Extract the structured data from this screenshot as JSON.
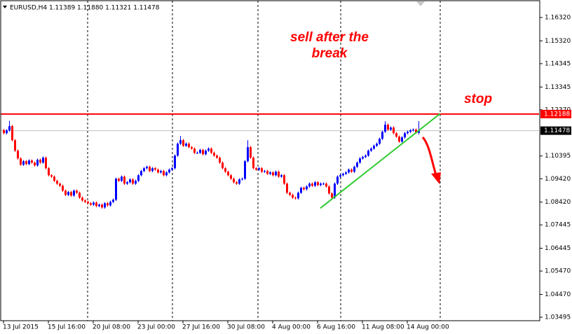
{
  "chart_data": {
    "type": "candlestick",
    "title": "EURUSD,H4  1.11389 1.11880 1.11321 1.11478",
    "up_color": "#0000ff",
    "down_color": "#ff0000",
    "xlim": [
      -1,
      191
    ],
    "ylim": [
      1.03345,
      1.16979
    ],
    "yticks": [
      {
        "value": 1.1632,
        "label": "1.16320"
      },
      {
        "value": 1.1532,
        "label": "1.15320"
      },
      1.14345,
      1.13345,
      {
        "value": 1.1237,
        "label": "1.12370"
      },
      1.10395,
      {
        "value": 1.0942,
        "label": "1.09420"
      },
      {
        "value": 1.0842,
        "label": "1.08420"
      },
      1.07445,
      1.06445,
      {
        "value": 1.0547,
        "label": "1.05470"
      },
      {
        "value": 1.0447,
        "label": "1.04470"
      },
      1.03495
    ],
    "xticks": [
      {
        "value": 0,
        "label": "13 Jul 2015"
      },
      {
        "value": 16,
        "label": "15 Jul 16:00"
      },
      {
        "value": 32,
        "label": "20 Jul 08:00"
      },
      {
        "value": 48,
        "label": "23 Jul 00:00"
      },
      {
        "value": 64,
        "label": "27 Jul 16:00"
      },
      {
        "value": 80,
        "label": "30 Jul 08:00"
      },
      {
        "value": 96,
        "label": "4 Aug 00:00"
      },
      {
        "value": 112,
        "label": "6 Aug 16:00"
      },
      {
        "value": 128,
        "label": "11 Aug 08:00"
      },
      {
        "value": 144,
        "label": "14 Aug 00:00"
      }
    ],
    "separators": [
      30,
      60.25,
      90.75,
      120.25,
      155.75
    ],
    "hlines": [
      {
        "value": 1.12188,
        "color": "#ff0000"
      },
      {
        "value": 1.11478,
        "color": "#c0c0c0"
      }
    ],
    "trendline": {
      "color": "#33cc33",
      "x": [
        113,
        155.75
      ],
      "y": [
        1.0816,
        1.1221
      ]
    },
    "annotations": [
      "sell after the",
      "break",
      "stop"
    ],
    "candles": [
      [
        1.115,
        1.1155,
        1.1132,
        1.1137
      ],
      [
        1.1137,
        1.1154,
        1.1132,
        1.1149
      ],
      [
        1.1149,
        1.119,
        1.1144,
        1.1167
      ],
      [
        1.1167,
        1.1172,
        1.1102,
        1.1107
      ],
      [
        1.1107,
        1.1112,
        1.1057,
        1.1062
      ],
      [
        1.1062,
        1.1067,
        1.1024,
        1.1029
      ],
      [
        1.1029,
        1.1034,
        1.0997,
        1.1002
      ],
      [
        1.1002,
        1.1022,
        1.0997,
        1.1017
      ],
      [
        1.1017,
        1.1022,
        1.1,
        1.1005
      ],
      [
        1.1005,
        1.1025,
        1.1,
        1.102
      ],
      [
        1.102,
        1.1025,
        1.1006,
        1.1011
      ],
      [
        1.1011,
        1.1016,
        1.0994,
        1.0999
      ],
      [
        1.0999,
        1.1028,
        1.0994,
        1.1023
      ],
      [
        1.1023,
        1.1028,
        1.1006,
        1.1011
      ],
      [
        1.1011,
        1.1037,
        1.1006,
        1.1032
      ],
      [
        1.1032,
        1.1037,
        1.0982,
        1.0987
      ],
      [
        1.0987,
        1.0992,
        1.0952,
        1.0957
      ],
      [
        1.0957,
        1.0962,
        1.0946,
        1.0951
      ],
      [
        1.0951,
        1.0956,
        1.0928,
        1.0933
      ],
      [
        1.0933,
        1.0938,
        1.0916,
        1.0921
      ],
      [
        1.0921,
        1.0926,
        1.0907,
        1.0912
      ],
      [
        1.0912,
        1.0917,
        1.0886,
        1.0891
      ],
      [
        1.0891,
        1.0896,
        1.0868,
        1.0873
      ],
      [
        1.0873,
        1.089,
        1.0868,
        1.0885
      ],
      [
        1.0885,
        1.089,
        1.0865,
        1.087
      ],
      [
        1.087,
        1.0896,
        1.0865,
        1.0891
      ],
      [
        1.0891,
        1.0896,
        1.0877,
        1.0882
      ],
      [
        1.0882,
        1.0887,
        1.0856,
        1.0861
      ],
      [
        1.0861,
        1.0866,
        1.0844,
        1.0849
      ],
      [
        1.0849,
        1.0854,
        1.0838,
        1.0843
      ],
      [
        1.0843,
        1.0848,
        1.0832,
        1.0837
      ],
      [
        1.0837,
        1.0842,
        1.0826,
        1.0831
      ],
      [
        1.0831,
        1.0845,
        1.0826,
        1.084
      ],
      [
        1.084,
        1.0845,
        1.082,
        1.0825
      ],
      [
        1.0825,
        1.0836,
        1.082,
        1.0831
      ],
      [
        1.0831,
        1.0836,
        1.0814,
        1.0819
      ],
      [
        1.0819,
        1.0842,
        1.0814,
        1.0837
      ],
      [
        1.0837,
        1.0842,
        1.0823,
        1.0828
      ],
      [
        1.0828,
        1.0848,
        1.0823,
        1.0843
      ],
      [
        1.0843,
        1.0857,
        1.0838,
        1.0852
      ],
      [
        1.0852,
        1.0947,
        1.0847,
        1.0942
      ],
      [
        1.0942,
        1.0947,
        1.0928,
        1.0933
      ],
      [
        1.0933,
        1.0956,
        1.0928,
        1.0951
      ],
      [
        1.0951,
        1.0956,
        1.0916,
        1.0921
      ],
      [
        1.0921,
        1.0932,
        1.0916,
        1.0927
      ],
      [
        1.0927,
        1.0944,
        1.0922,
        1.0939
      ],
      [
        1.0939,
        1.0944,
        1.0916,
        1.0921
      ],
      [
        1.0921,
        1.0938,
        1.0916,
        1.0933
      ],
      [
        1.0933,
        1.0962,
        1.0928,
        1.0957
      ],
      [
        1.0957,
        1.098,
        1.0952,
        1.0975
      ],
      [
        1.0975,
        1.0992,
        1.097,
        1.0987
      ],
      [
        1.0987,
        1.0998,
        1.0982,
        1.0993
      ],
      [
        1.0993,
        1.0998,
        1.097,
        1.0975
      ],
      [
        1.0975,
        1.0992,
        1.097,
        1.0987
      ],
      [
        1.0987,
        1.0992,
        1.0976,
        1.0981
      ],
      [
        1.0981,
        1.0986,
        1.0964,
        1.0969
      ],
      [
        1.0969,
        1.098,
        1.0964,
        1.0975
      ],
      [
        1.0975,
        1.098,
        1.0952,
        1.0957
      ],
      [
        1.0957,
        1.0974,
        1.0952,
        1.0969
      ],
      [
        1.0969,
        1.0986,
        1.0964,
        1.0981
      ],
      [
        1.0981,
        1.0992,
        1.0976,
        1.0987
      ],
      [
        1.0987,
        1.1046,
        1.0982,
        1.1041
      ],
      [
        1.1041,
        1.1097,
        1.1036,
        1.1092
      ],
      [
        1.1092,
        1.1125,
        1.1087,
        1.1107
      ],
      [
        1.1107,
        1.1112,
        1.1078,
        1.1083
      ],
      [
        1.1083,
        1.1097,
        1.1078,
        1.1092
      ],
      [
        1.1092,
        1.1097,
        1.1072,
        1.1077
      ],
      [
        1.1077,
        1.1082,
        1.1066,
        1.1071
      ],
      [
        1.1071,
        1.1076,
        1.1048,
        1.1053
      ],
      [
        1.1053,
        1.1058,
        1.1048,
        1.1053
      ],
      [
        1.1053,
        1.107,
        1.1048,
        1.1065
      ],
      [
        1.1065,
        1.107,
        1.1042,
        1.1047
      ],
      [
        1.1047,
        1.1067,
        1.1042,
        1.1062
      ],
      [
        1.1062,
        1.1076,
        1.1057,
        1.1071
      ],
      [
        1.1071,
        1.1076,
        1.1048,
        1.1053
      ],
      [
        1.1053,
        1.1058,
        1.1036,
        1.1041
      ],
      [
        1.1041,
        1.1046,
        1.1027,
        1.1032
      ],
      [
        1.1032,
        1.1037,
        1.1006,
        1.1011
      ],
      [
        1.1011,
        1.1016,
        1.0982,
        1.0987
      ],
      [
        1.0987,
        1.0992,
        1.0967,
        1.0972
      ],
      [
        1.0972,
        1.0977,
        1.0952,
        1.0957
      ],
      [
        1.0957,
        1.0962,
        1.0937,
        1.0942
      ],
      [
        1.0942,
        1.0947,
        1.0922,
        1.0927
      ],
      [
        1.0927,
        1.0932,
        1.0916,
        1.0921
      ],
      [
        1.0921,
        1.0944,
        1.0916,
        1.0939
      ],
      [
        1.0939,
        1.0947,
        1.0934,
        1.0942
      ],
      [
        1.0942,
        1.1022,
        1.0937,
        1.1017
      ],
      [
        1.1017,
        1.1107,
        1.1012,
        1.1077
      ],
      [
        1.1077,
        1.1082,
        1.1027,
        1.1032
      ],
      [
        1.1032,
        1.1037,
        1.0982,
        1.0987
      ],
      [
        1.0987,
        1.0992,
        1.0976,
        1.0981
      ],
      [
        1.0981,
        1.0992,
        1.0976,
        1.0987
      ],
      [
        1.0987,
        1.0992,
        1.0967,
        1.0972
      ],
      [
        1.0972,
        1.098,
        1.0967,
        1.0975
      ],
      [
        1.0975,
        1.098,
        1.0958,
        1.0963
      ],
      [
        1.0963,
        1.0974,
        1.0958,
        1.0969
      ],
      [
        1.0969,
        1.0974,
        1.0952,
        1.0957
      ],
      [
        1.0957,
        1.0977,
        1.0952,
        1.0972
      ],
      [
        1.0972,
        1.0977,
        1.0946,
        1.0951
      ],
      [
        1.0951,
        1.0962,
        1.0946,
        1.0957
      ],
      [
        1.0957,
        1.0962,
        1.0916,
        1.0921
      ],
      [
        1.0921,
        1.0926,
        1.0877,
        1.0882
      ],
      [
        1.0882,
        1.0887,
        1.0868,
        1.0873
      ],
      [
        1.0873,
        1.0878,
        1.0856,
        1.0861
      ],
      [
        1.0861,
        1.0866,
        1.0853,
        1.0858
      ],
      [
        1.0858,
        1.0887,
        1.0853,
        1.0882
      ],
      [
        1.0882,
        1.0908,
        1.0877,
        1.0903
      ],
      [
        1.0903,
        1.0908,
        1.0892,
        1.0897
      ],
      [
        1.0897,
        1.0914,
        1.0892,
        1.0909
      ],
      [
        1.0909,
        1.0926,
        1.0904,
        1.0921
      ],
      [
        1.0921,
        1.0926,
        1.0907,
        1.0912
      ],
      [
        1.0912,
        1.0932,
        1.0907,
        1.0927
      ],
      [
        1.0927,
        1.0932,
        1.091,
        1.0915
      ],
      [
        1.0915,
        1.0926,
        1.091,
        1.0921
      ],
      [
        1.0921,
        1.0926,
        1.0916,
        1.0921
      ],
      [
        1.0921,
        1.0926,
        1.0904,
        1.0909
      ],
      [
        1.0909,
        1.0914,
        1.0874,
        1.0879
      ],
      [
        1.0879,
        1.0884,
        1.0856,
        1.0861
      ],
      [
        1.0861,
        1.0926,
        1.0856,
        1.0921
      ],
      [
        1.0921,
        1.0956,
        1.0916,
        1.0951
      ],
      [
        1.0951,
        1.0962,
        1.0946,
        1.0957
      ],
      [
        1.0957,
        1.0968,
        1.0952,
        1.0963
      ],
      [
        1.0963,
        1.0974,
        1.0958,
        1.0969
      ],
      [
        1.0969,
        1.0986,
        1.0964,
        1.0981
      ],
      [
        1.0981,
        1.0986,
        1.0967,
        1.0972
      ],
      [
        1.0972,
        1.0998,
        1.0967,
        1.0993
      ],
      [
        1.0993,
        1.1016,
        1.0988,
        1.1011
      ],
      [
        1.1011,
        1.1034,
        1.1006,
        1.1029
      ],
      [
        1.1029,
        1.104,
        1.1024,
        1.1035
      ],
      [
        1.1035,
        1.1046,
        1.103,
        1.1041
      ],
      [
        1.1041,
        1.1067,
        1.1036,
        1.1062
      ],
      [
        1.1062,
        1.1076,
        1.1057,
        1.1071
      ],
      [
        1.1071,
        1.1088,
        1.1066,
        1.1083
      ],
      [
        1.1083,
        1.1097,
        1.1078,
        1.1092
      ],
      [
        1.1092,
        1.1118,
        1.1087,
        1.1113
      ],
      [
        1.1113,
        1.1148,
        1.1108,
        1.1143
      ],
      [
        1.1143,
        1.1188,
        1.1138,
        1.1173
      ],
      [
        1.1173,
        1.1178,
        1.1147,
        1.1152
      ],
      [
        1.1152,
        1.1166,
        1.1147,
        1.1161
      ],
      [
        1.1161,
        1.1166,
        1.1132,
        1.1137
      ],
      [
        1.1137,
        1.1142,
        1.1117,
        1.1122
      ],
      [
        1.1122,
        1.1127,
        1.1096,
        1.1101
      ],
      [
        1.1101,
        1.1124,
        1.1096,
        1.1119
      ],
      [
        1.1119,
        1.1142,
        1.1114,
        1.1137
      ],
      [
        1.1137,
        1.1148,
        1.1132,
        1.1143
      ],
      [
        1.1143,
        1.1154,
        1.1138,
        1.1149
      ],
      [
        1.1149,
        1.1157,
        1.1144,
        1.1152
      ],
      [
        1.1152,
        1.1157,
        1.1134,
        1.1139
      ],
      [
        1.11389,
        1.1188,
        1.11321,
        1.11478
      ]
    ]
  }
}
